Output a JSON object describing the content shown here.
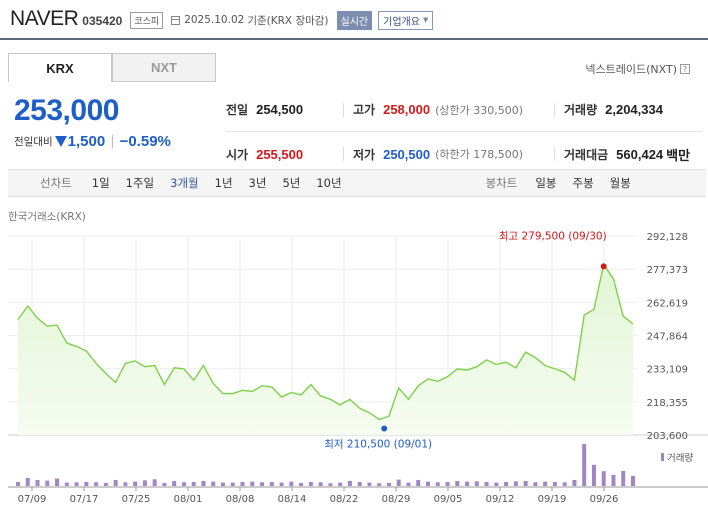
{
  "header": {
    "company": "NAVER",
    "code": "035420",
    "market": "코스피",
    "date": "2025.10.02",
    "basis": "기준(KRX 장마감)",
    "realtime": "실시간",
    "company_info": "기업개요"
  },
  "tabs": [
    {
      "label": "KRX",
      "active": true
    },
    {
      "label": "NXT",
      "active": false
    }
  ],
  "nxt_link": "넥스트레이드(NXT)",
  "price": {
    "current": "253,000",
    "change_label": "전일대비",
    "change_amount": "1,500",
    "change_pct": "−0.59%"
  },
  "stats": {
    "prev_close": {
      "label": "전일",
      "value": "254,500"
    },
    "high": {
      "label": "고가",
      "value": "258,000",
      "sub": "(상한가 330,500)"
    },
    "volume": {
      "label": "거래량",
      "value": "2,204,334"
    },
    "open": {
      "label": "시가",
      "value": "255,500"
    },
    "low": {
      "label": "저가",
      "value": "250,500",
      "sub": "(하한가 178,500)"
    },
    "amount": {
      "label": "거래대금",
      "value": "560,424",
      "unit": "백만"
    }
  },
  "period_bar": {
    "line_label": "선차트",
    "line_periods": [
      "1일",
      "1주일",
      "3개월",
      "1년",
      "3년",
      "5년",
      "10년"
    ],
    "active_period": "3개월",
    "candle_label": "봉차트",
    "candle_periods": [
      "일봉",
      "주봉",
      "월봉"
    ]
  },
  "exchange_label": "한국거래소(KRX)",
  "chart_data": {
    "type": "area",
    "y_ticks": [
      "292,128",
      "277,373",
      "262,619",
      "247,864",
      "233,109",
      "218,355",
      "203,600"
    ],
    "ylim": [
      203600,
      292128
    ],
    "x_labels": [
      "07/09",
      "07/17",
      "07/25",
      "08/01",
      "08/08",
      "08/14",
      "08/22",
      "08/29",
      "09/05",
      "09/12",
      "09/19",
      "09/26"
    ],
    "y": [
      255000,
      261000,
      255500,
      252000,
      252500,
      244500,
      243000,
      241000,
      235500,
      231000,
      227000,
      235500,
      236500,
      234000,
      234500,
      226000,
      233500,
      233000,
      228000,
      234500,
      226500,
      222000,
      222000,
      223500,
      223000,
      225500,
      225000,
      220500,
      222500,
      221500,
      226000,
      221000,
      219500,
      217000,
      219500,
      215500,
      213500,
      210500,
      212000,
      224500,
      219500,
      225500,
      228500,
      227500,
      229500,
      233000,
      232500,
      234000,
      237000,
      235000,
      236000,
      233500,
      240500,
      238000,
      234500,
      233000,
      231500,
      228000,
      257000,
      259500,
      279500,
      273000,
      256500,
      253000
    ],
    "high_annotation": "최고 279,500 (09/30)",
    "low_annotation": "최저 210,500 (09/01)",
    "volume_label": "거래량",
    "volume": [
      12,
      24,
      18,
      16,
      22,
      10,
      11,
      12,
      11,
      9,
      18,
      11,
      13,
      17,
      20,
      9,
      15,
      11,
      12,
      15,
      13,
      10,
      10,
      12,
      13,
      11,
      12,
      10,
      13,
      9,
      12,
      11,
      8,
      10,
      15,
      12,
      10,
      8,
      9,
      19,
      10,
      18,
      13,
      11,
      12,
      15,
      13,
      14,
      12,
      10,
      12,
      14,
      15,
      11,
      13,
      12,
      11,
      18,
      125,
      63,
      44,
      33,
      45,
      30
    ],
    "colors": {
      "line": "#7ed04a",
      "fill_top": "#e2f5d4",
      "fill_bottom": "#f6fcf1",
      "volume": "#a385c6",
      "high": "#d2191b",
      "low": "#1e5ec8"
    }
  }
}
